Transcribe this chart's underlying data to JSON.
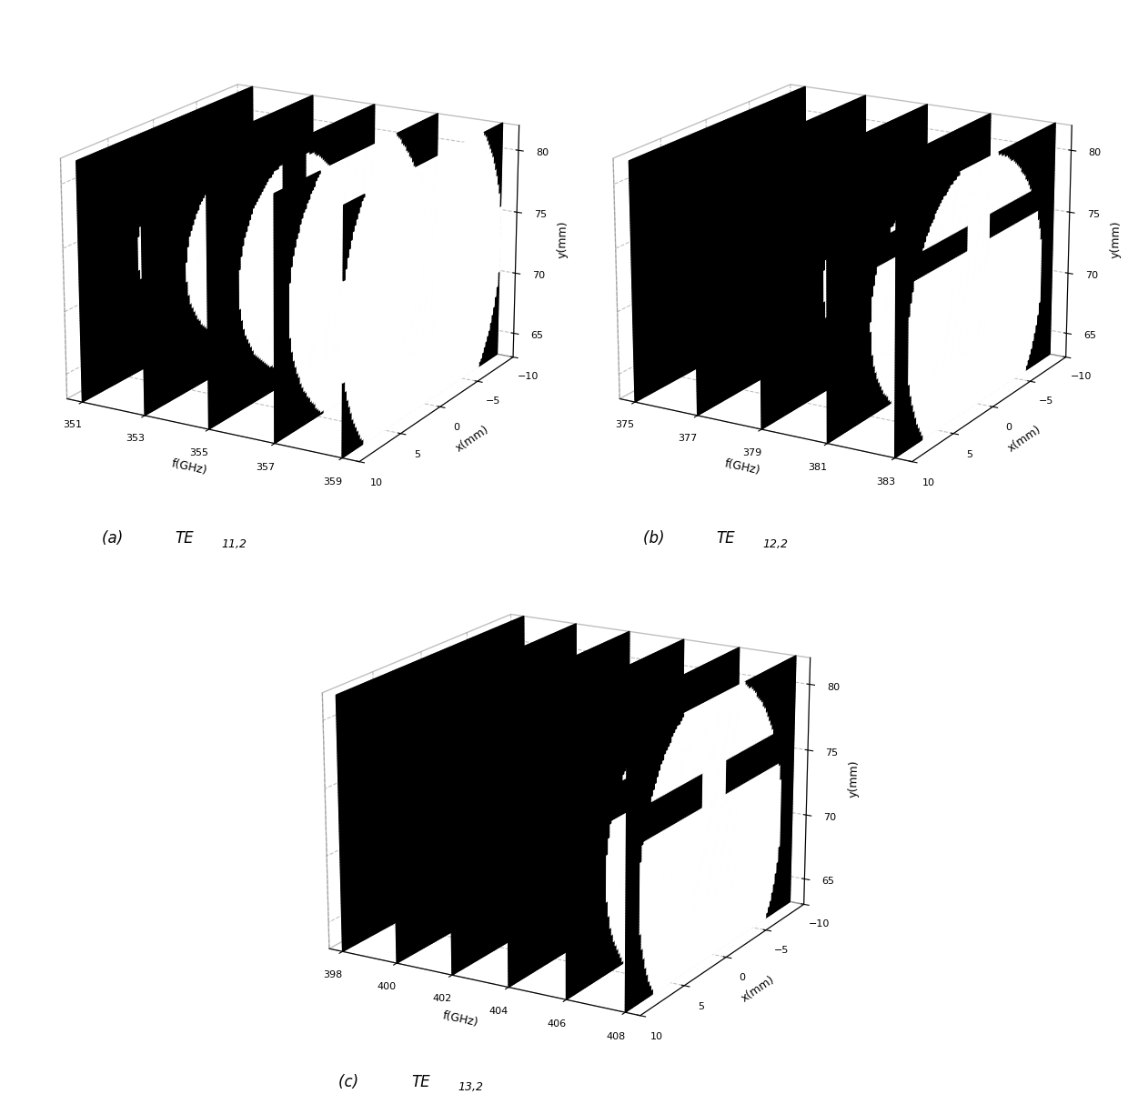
{
  "panels": [
    {
      "label_main": "(a) TE",
      "subscript": "11,2",
      "freq_ticks": [
        351,
        353,
        355,
        357,
        359
      ],
      "mode": "TE11_2",
      "num_slices": 5,
      "elev": 18,
      "azim": -60
    },
    {
      "label_main": "(b) TE",
      "subscript": "12,2",
      "freq_ticks": [
        375,
        377,
        379,
        381,
        383
      ],
      "mode": "TE12_2",
      "num_slices": 5,
      "elev": 18,
      "azim": -60
    },
    {
      "label_main": "(c) TE",
      "subscript": "13,2",
      "freq_ticks": [
        398,
        400,
        402,
        404,
        406,
        408
      ],
      "mode": "TE13_2",
      "num_slices": 6,
      "elev": 18,
      "azim": -60
    }
  ],
  "x_range": [
    -10,
    10
  ],
  "y_range": [
    63,
    82
  ],
  "x_ticks": [
    -10,
    -5,
    0,
    5,
    10
  ],
  "y_ticks": [
    65,
    70,
    75,
    80
  ],
  "xlabel": "x(mm)",
  "ylabel": "y(mm)",
  "freq_label": "f(GHz)",
  "nx": 100,
  "ny": 100
}
